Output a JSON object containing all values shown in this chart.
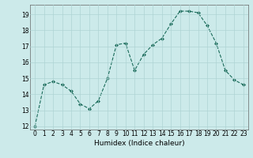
{
  "x": [
    0,
    1,
    2,
    3,
    4,
    5,
    6,
    7,
    8,
    9,
    10,
    11,
    12,
    13,
    14,
    15,
    16,
    17,
    18,
    19,
    20,
    21,
    22,
    23
  ],
  "y": [
    12.0,
    14.6,
    14.8,
    14.6,
    14.2,
    13.4,
    13.1,
    13.6,
    15.0,
    17.1,
    17.2,
    15.5,
    16.5,
    17.1,
    17.5,
    18.4,
    19.2,
    19.2,
    19.1,
    18.3,
    17.2,
    15.5,
    14.9,
    14.6
  ],
  "line_color": "#1a6b5a",
  "marker": "D",
  "marker_size": 2,
  "bg_color": "#cceaea",
  "grid_color": "#aed4d4",
  "xlabel": "Humidex (Indice chaleur)",
  "xlim": [
    -0.5,
    23.5
  ],
  "ylim": [
    11.8,
    19.6
  ],
  "yticks": [
    12,
    13,
    14,
    15,
    16,
    17,
    18,
    19
  ],
  "xticks": [
    0,
    1,
    2,
    3,
    4,
    5,
    6,
    7,
    8,
    9,
    10,
    11,
    12,
    13,
    14,
    15,
    16,
    17,
    18,
    19,
    20,
    21,
    22,
    23
  ],
  "xlabel_fontsize": 6.5,
  "tick_fontsize": 5.5
}
